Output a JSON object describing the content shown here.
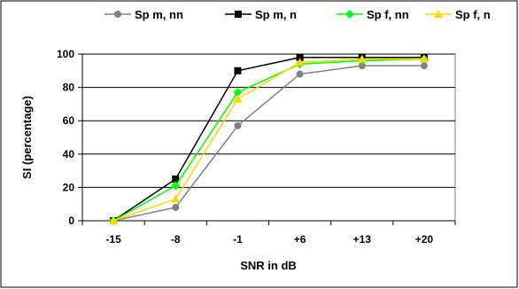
{
  "chart_data": {
    "type": "line",
    "title": "",
    "xlabel": "SNR in dB",
    "ylabel": "SI (percentage)",
    "categories": [
      "-15",
      "-8",
      "-1",
      "+6",
      "+13",
      "+20"
    ],
    "ylim": [
      0,
      100
    ],
    "yticks": [
      0,
      20,
      40,
      60,
      80,
      100
    ],
    "grid": "horizontal",
    "legend_position": "top",
    "series": [
      {
        "name": "Sp m, nn",
        "color": "#808080",
        "marker": "circle",
        "values": [
          0,
          8,
          57,
          88,
          93,
          93
        ]
      },
      {
        "name": "Sp m, n",
        "color": "#000000",
        "marker": "square",
        "values": [
          0,
          25,
          90,
          98,
          98,
          98
        ]
      },
      {
        "name": "Sp f, nn",
        "color": "#00ff00",
        "marker": "diamond",
        "values": [
          0,
          21,
          77,
          94,
          96,
          97
        ]
      },
      {
        "name": "Sp f, n",
        "color": "#ffd700",
        "marker": "triangle",
        "values": [
          0,
          13,
          73,
          95,
          97,
          97
        ]
      }
    ]
  }
}
